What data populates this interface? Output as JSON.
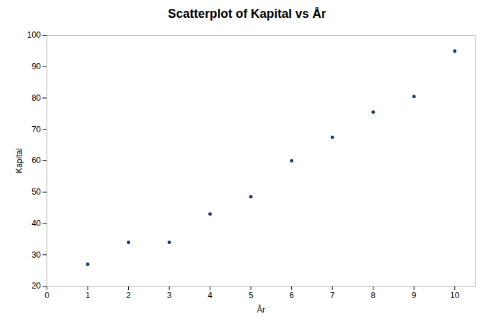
{
  "chart_data": {
    "type": "scatter",
    "title": "Scatterplot of Kapital vs År",
    "xlabel": "År",
    "ylabel": "Kapital",
    "x": [
      1,
      2,
      3,
      4,
      5,
      6,
      7,
      8,
      9,
      10
    ],
    "y": [
      27,
      34,
      34,
      43,
      48.5,
      60,
      67.5,
      75.5,
      80.5,
      95
    ],
    "xlim": [
      0,
      10.5
    ],
    "ylim": [
      20,
      100
    ],
    "xticks": [
      0,
      1,
      2,
      3,
      4,
      5,
      6,
      7,
      8,
      9,
      10
    ],
    "yticks": [
      20,
      30,
      40,
      50,
      60,
      70,
      80,
      90,
      100
    ],
    "color": "#1a3a6b",
    "grid": false
  }
}
